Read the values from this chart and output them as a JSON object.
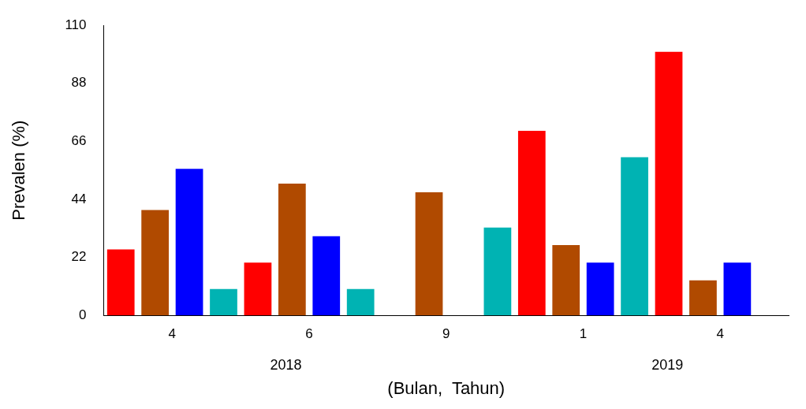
{
  "chart_data": {
    "type": "bar",
    "xlabel": "(Bulan,  Tahun)",
    "ylabel": "Prevalen (%)",
    "categories": [
      "4",
      "6",
      "9",
      "1",
      "4"
    ],
    "series": [
      {
        "color": "#ff0000",
        "values": [
          25,
          20,
          null,
          70,
          100
        ]
      },
      {
        "color": "#b04a00",
        "values": [
          40,
          50,
          46.7,
          26.7,
          13.3
        ]
      },
      {
        "color": "#0000ff",
        "values": [
          55.6,
          30,
          null,
          20,
          20
        ]
      },
      {
        "color": "#00b3b3",
        "values": [
          10,
          10,
          33.3,
          60,
          null
        ]
      }
    ],
    "ylim": [
      0,
      110
    ],
    "yticks": [
      0,
      22,
      44,
      66,
      88,
      110
    ],
    "grid": false,
    "legend": false,
    "annotations": [
      "2018",
      "2019"
    ]
  }
}
